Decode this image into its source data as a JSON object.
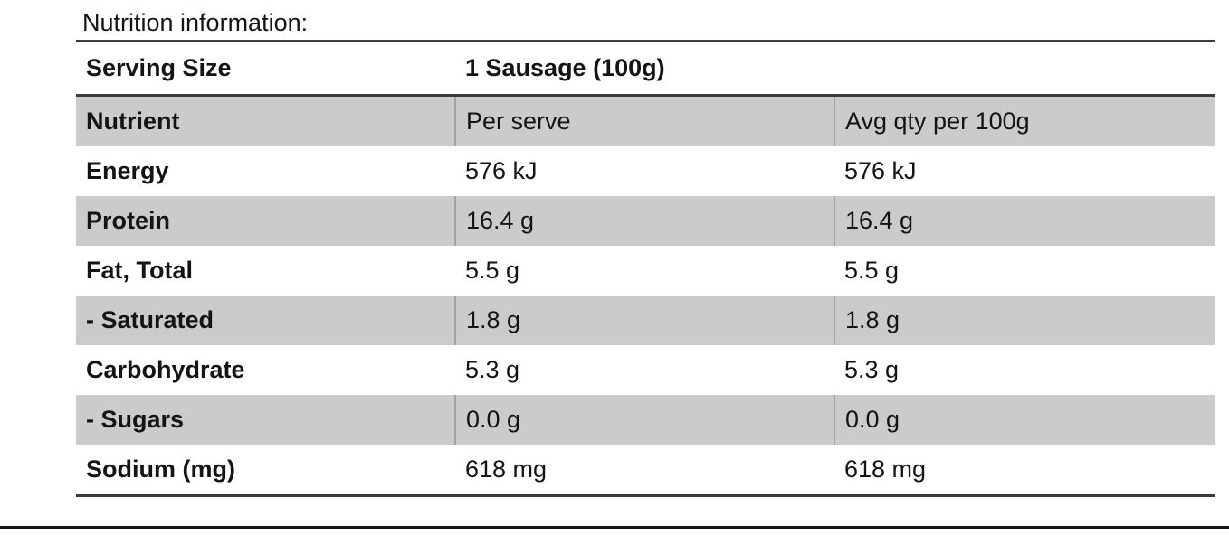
{
  "page": {
    "title": "Nutrition information:"
  },
  "table": {
    "serving_row": {
      "label": "Serving Size",
      "value": "1 Sausage (100g)"
    },
    "columns": {
      "nutrient": "Nutrient",
      "per_serve": "Per serve",
      "per_100g": "Avg qty per 100g"
    },
    "rows": [
      {
        "nutrient": "Energy",
        "per_serve": "576 kJ",
        "per_100g": "576 kJ",
        "shaded": false,
        "indent": false
      },
      {
        "nutrient": "Protein",
        "per_serve": "16.4 g",
        "per_100g": "16.4 g",
        "shaded": true,
        "indent": false
      },
      {
        "nutrient": "Fat, Total",
        "per_serve": "5.5 g",
        "per_100g": "5.5 g",
        "shaded": false,
        "indent": false
      },
      {
        "nutrient": "- Saturated",
        "per_serve": "1.8 g",
        "per_100g": "1.8 g",
        "shaded": true,
        "indent": true
      },
      {
        "nutrient": "Carbohydrate",
        "per_serve": "5.3 g",
        "per_100g": "5.3 g",
        "shaded": false,
        "indent": false
      },
      {
        "nutrient": "- Sugars",
        "per_serve": "0.0 g",
        "per_100g": "0.0 g",
        "shaded": true,
        "indent": true
      },
      {
        "nutrient": "Sodium (mg)",
        "per_serve": "618 mg",
        "per_100g": "618 mg",
        "shaded": false,
        "indent": false
      }
    ],
    "colors": {
      "shaded_row_bg": "#cbcbcb",
      "cell_divider": "#a2a2a2",
      "table_border": "#3b3b3b",
      "bottom_rule": "#161616"
    }
  }
}
